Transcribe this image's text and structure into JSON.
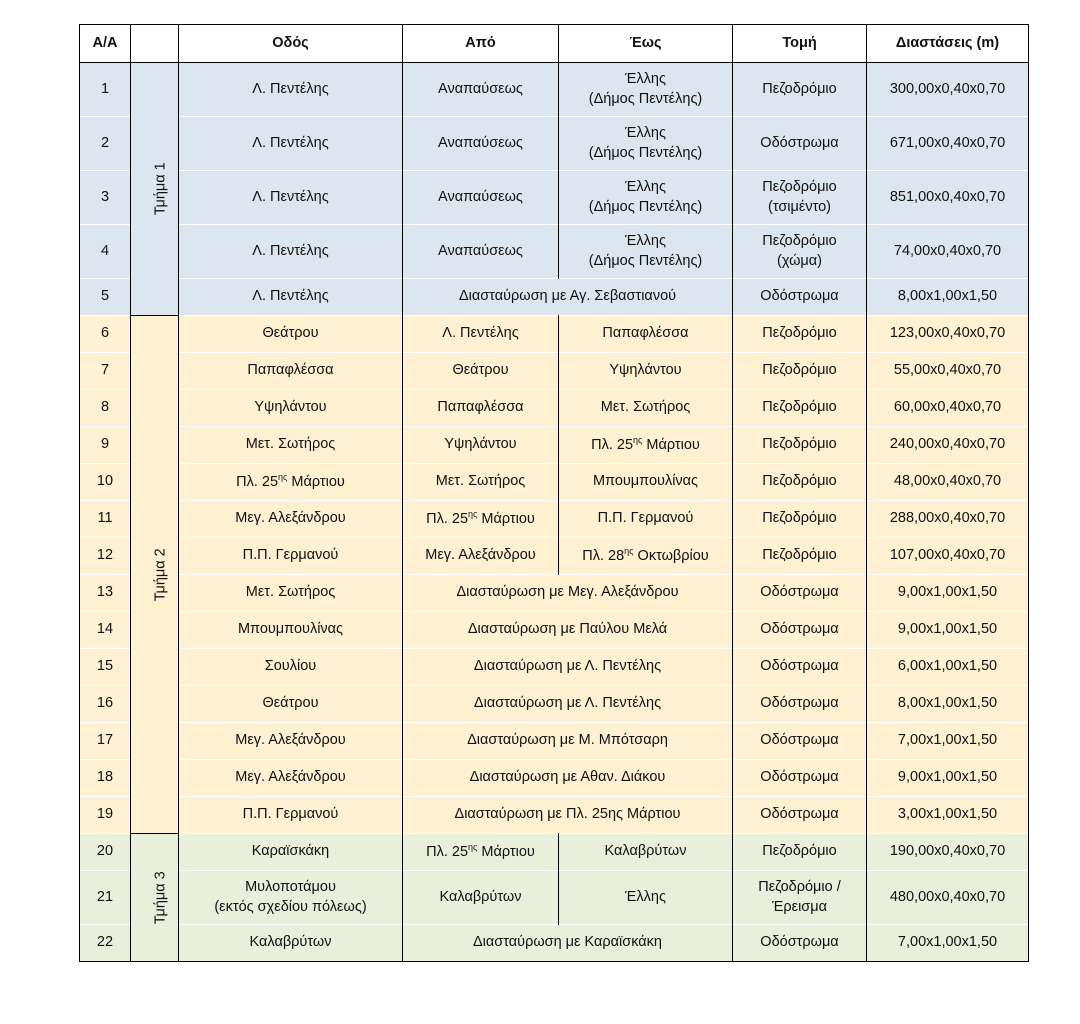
{
  "headers": [
    "Α/Α",
    "",
    "Οδός",
    "Από",
    "Έως",
    "Τομή",
    "Διαστάσεις (m)"
  ],
  "colors": {
    "section1": "#dce6f1",
    "section2": "#fdf1d2",
    "section3": "#e8f0dc"
  },
  "sections": [
    {
      "label": "Τμήμα 1",
      "rows": [
        {
          "aa": "1",
          "street": [
            "Λ. Πεντέλης"
          ],
          "from": "Αναπαύσεως",
          "to": [
            "Έλλης",
            "(Δήμος Πεντέλης)"
          ],
          "section": [
            "Πεζοδρόμιο"
          ],
          "dims": "300,00x0,40x0,70"
        },
        {
          "aa": "2",
          "street": [
            "Λ. Πεντέλης"
          ],
          "from": "Αναπαύσεως",
          "to": [
            "Έλλης",
            "(Δήμος Πεντέλης)"
          ],
          "section": [
            "Οδόστρωμα"
          ],
          "dims": "671,00x0,40x0,70"
        },
        {
          "aa": "3",
          "street": [
            "Λ. Πεντέλης"
          ],
          "from": "Αναπαύσεως",
          "to": [
            "Έλλης",
            "(Δήμος Πεντέλης)"
          ],
          "section": [
            "Πεζοδρόμιο",
            "(τσιμέντο)"
          ],
          "dims": "851,00x0,40x0,70"
        },
        {
          "aa": "4",
          "street": [
            "Λ. Πεντέλης"
          ],
          "from": "Αναπαύσεως",
          "to": [
            "Έλλης",
            "(Δήμος Πεντέλης)"
          ],
          "section": [
            "Πεζοδρόμιο",
            "(χώμα)"
          ],
          "dims": "74,00x0,40x0,70"
        },
        {
          "aa": "5",
          "street": [
            "Λ. Πεντέλης"
          ],
          "cross": "Διασταύρωση με Αγ. Σεβαστιανού",
          "section": [
            "Οδόστρωμα"
          ],
          "dims": "8,00x1,00x1,50"
        }
      ]
    },
    {
      "label": "Τμήμα 2",
      "rows": [
        {
          "aa": "6",
          "street": [
            "Θεάτρου"
          ],
          "from": "Λ. Πεντέλης",
          "to": [
            "Παπαφλέσσα"
          ],
          "section": [
            "Πεζοδρόμιο"
          ],
          "dims": "123,00x0,40x0,70"
        },
        {
          "aa": "7",
          "street": [
            "Παπαφλέσσα"
          ],
          "from": "Θεάτρου",
          "to": [
            "Υψηλάντου"
          ],
          "section": [
            "Πεζοδρόμιο"
          ],
          "dims": "55,00x0,40x0,70"
        },
        {
          "aa": "8",
          "street": [
            "Υψηλάντου"
          ],
          "from": "Παπαφλέσσα",
          "to": [
            "Μετ. Σωτήρος"
          ],
          "section": [
            "Πεζοδρόμιο"
          ],
          "dims": "60,00x0,40x0,70"
        },
        {
          "aa": "9",
          "street": [
            "Μετ. Σωτήρος"
          ],
          "from": "Υψηλάντου",
          "to": [
            "Πλ. 25ης Μάρτιου"
          ],
          "section": [
            "Πεζοδρόμιο"
          ],
          "dims": "240,00x0,40x0,70"
        },
        {
          "aa": "10",
          "street": [
            "Πλ. 25ης Μάρτιου"
          ],
          "from": "Μετ. Σωτήρος",
          "to": [
            "Μπουμπουλίνας"
          ],
          "section": [
            "Πεζοδρόμιο"
          ],
          "dims": "48,00x0,40x0,70"
        },
        {
          "aa": "11",
          "street": [
            "Μεγ. Αλεξάνδρου"
          ],
          "from": "Πλ. 25ης Μάρτιου",
          "to": [
            "Π.Π. Γερμανού"
          ],
          "section": [
            "Πεζοδρόμιο"
          ],
          "dims": "288,00x0,40x0,70"
        },
        {
          "aa": "12",
          "street": [
            "Π.Π. Γερμανού"
          ],
          "from": "Μεγ. Αλεξάνδρου",
          "to": [
            "Πλ. 28ης Οκτωβρίου"
          ],
          "section": [
            "Πεζοδρόμιο"
          ],
          "dims": "107,00x0,40x0,70"
        },
        {
          "aa": "13",
          "street": [
            "Μετ. Σωτήρος"
          ],
          "cross": "Διασταύρωση με Μεγ. Αλεξάνδρου",
          "section": [
            "Οδόστρωμα"
          ],
          "dims": "9,00x1,00x1,50"
        },
        {
          "aa": "14",
          "street": [
            "Μπουμπουλίνας"
          ],
          "cross": "Διασταύρωση με Παύλου Μελά",
          "section": [
            "Οδόστρωμα"
          ],
          "dims": "9,00x1,00x1,50"
        },
        {
          "aa": "15",
          "street": [
            "Σουλίου"
          ],
          "cross": "Διασταύρωση με Λ. Πεντέλης",
          "section": [
            "Οδόστρωμα"
          ],
          "dims": "6,00x1,00x1,50"
        },
        {
          "aa": "16",
          "street": [
            "Θεάτρου"
          ],
          "cross": "Διασταύρωση με Λ. Πεντέλης",
          "section": [
            "Οδόστρωμα"
          ],
          "dims": "8,00x1,00x1,50"
        },
        {
          "aa": "17",
          "street": [
            "Μεγ. Αλεξάνδρου"
          ],
          "cross": "Διασταύρωση με Μ. Μπότσαρη",
          "section": [
            "Οδόστρωμα"
          ],
          "dims": "7,00x1,00x1,50"
        },
        {
          "aa": "18",
          "street": [
            "Μεγ. Αλεξάνδρου"
          ],
          "cross": "Διασταύρωση με Αθαν. Διάκου",
          "section": [
            "Οδόστρωμα"
          ],
          "dims": "9,00x1,00x1,50"
        },
        {
          "aa": "19",
          "street": [
            "Π.Π. Γερμανού"
          ],
          "cross": "Διασταύρωση με Πλ. 25ης Μάρτιου",
          "section": [
            "Οδόστρωμα"
          ],
          "dims": "3,00x1,00x1,50"
        }
      ]
    },
    {
      "label": "Τμήμα 3",
      "rows": [
        {
          "aa": "20",
          "street": [
            "Καραϊσκάκη"
          ],
          "from": "Πλ. 25ης Μάρτιου",
          "to": [
            "Καλαβρύτων"
          ],
          "section": [
            "Πεζοδρόμιο"
          ],
          "dims": "190,00x0,40x0,70"
        },
        {
          "aa": "21",
          "street": [
            "Μυλοποτάμου",
            "(εκτός σχεδίου πόλεως)"
          ],
          "from": "Καλαβρύτων",
          "to": [
            "Έλλης"
          ],
          "section": [
            "Πεζοδρόμιο /",
            "Έρεισμα"
          ],
          "dims": "480,00x0,40x0,70"
        },
        {
          "aa": "22",
          "street": [
            "Καλαβρύτων"
          ],
          "cross": "Διασταύρωση με Καραϊσκάκη",
          "section": [
            "Οδόστρωμα"
          ],
          "dims": "7,00x1,00x1,50"
        }
      ]
    }
  ]
}
